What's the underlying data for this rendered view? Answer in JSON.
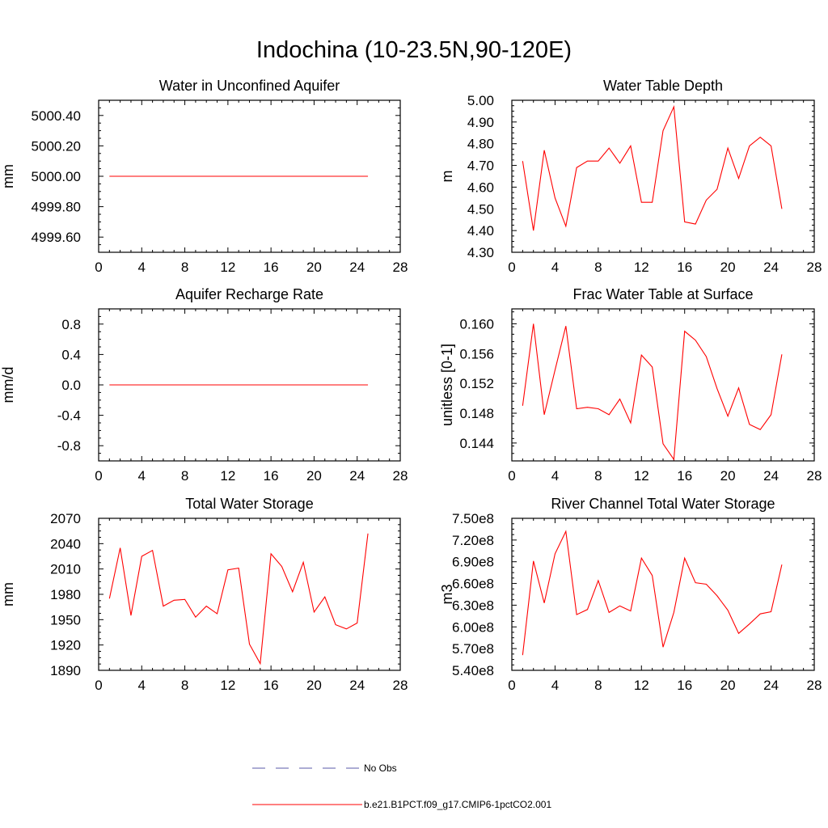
{
  "title": "Indochina (10-23.5N,90-120E)",
  "legend": [
    {
      "label": "No Obs",
      "color": "#5a5aa8",
      "style": "dashed"
    },
    {
      "label": "b.e21.B1PCT.f09_g17.CMIP6-1pctCO2.001",
      "color": "#ff0000",
      "style": "solid"
    }
  ],
  "chart_data": [
    {
      "type": "line",
      "title": "Water in Unconfined Aquifer",
      "ylabel": "mm",
      "xlim": [
        0,
        28
      ],
      "xticks": [
        0,
        4,
        8,
        12,
        16,
        20,
        24,
        28
      ],
      "ylim": [
        4999.5,
        5000.5
      ],
      "yticks": [
        4999.6,
        4999.8,
        5000.0,
        5000.2,
        5000.4
      ],
      "yticklabels": [
        "4999.60",
        "4999.80",
        "5000.00",
        "5000.20",
        "5000.40"
      ],
      "series": [
        {
          "color": "#ff0000",
          "x": [
            1,
            2,
            3,
            4,
            5,
            6,
            7,
            8,
            9,
            10,
            11,
            12,
            13,
            14,
            15,
            16,
            17,
            18,
            19,
            20,
            21,
            22,
            23,
            24,
            25
          ],
          "y": [
            5000,
            5000,
            5000,
            5000,
            5000,
            5000,
            5000,
            5000,
            5000,
            5000,
            5000,
            5000,
            5000,
            5000,
            5000,
            5000,
            5000,
            5000,
            5000,
            5000,
            5000,
            5000,
            5000,
            5000,
            5000
          ]
        }
      ]
    },
    {
      "type": "line",
      "title": "Water Table Depth",
      "ylabel": "m",
      "xlim": [
        0,
        28
      ],
      "xticks": [
        0,
        4,
        8,
        12,
        16,
        20,
        24,
        28
      ],
      "ylim": [
        4.3,
        5.0
      ],
      "yticks": [
        4.3,
        4.4,
        4.5,
        4.6,
        4.7,
        4.8,
        4.9,
        5.0
      ],
      "yticklabels": [
        "4.30",
        "4.40",
        "4.50",
        "4.60",
        "4.70",
        "4.80",
        "4.90",
        "5.00"
      ],
      "series": [
        {
          "color": "#ff0000",
          "x": [
            1,
            2,
            3,
            4,
            5,
            6,
            7,
            8,
            9,
            10,
            11,
            12,
            13,
            14,
            15,
            16,
            17,
            18,
            19,
            20,
            21,
            22,
            23,
            24,
            25
          ],
          "y": [
            4.72,
            4.4,
            4.77,
            4.55,
            4.42,
            4.69,
            4.72,
            4.72,
            4.78,
            4.71,
            4.79,
            4.53,
            4.53,
            4.86,
            4.97,
            4.44,
            4.43,
            4.54,
            4.59,
            4.78,
            4.64,
            4.79,
            4.83,
            4.79,
            4.5
          ]
        }
      ]
    },
    {
      "type": "line",
      "title": "Aquifer Recharge Rate",
      "ylabel": "mm/d",
      "xlim": [
        0,
        28
      ],
      "xticks": [
        0,
        4,
        8,
        12,
        16,
        20,
        24,
        28
      ],
      "ylim": [
        -1.0,
        1.0
      ],
      "yticks": [
        -0.8,
        -0.4,
        0.0,
        0.4,
        0.8
      ],
      "yticklabels": [
        "-0.8",
        "-0.4",
        "0.0",
        "0.4",
        "0.8"
      ],
      "series": [
        {
          "color": "#ff0000",
          "x": [
            1,
            2,
            3,
            4,
            5,
            6,
            7,
            8,
            9,
            10,
            11,
            12,
            13,
            14,
            15,
            16,
            17,
            18,
            19,
            20,
            21,
            22,
            23,
            24,
            25
          ],
          "y": [
            0,
            0,
            0,
            0,
            0,
            0,
            0,
            0,
            0,
            0,
            0,
            0,
            0,
            0,
            0,
            0,
            0,
            0,
            0,
            0,
            0,
            0,
            0,
            0,
            0
          ]
        }
      ]
    },
    {
      "type": "line",
      "title": "Frac Water Table at Surface",
      "ylabel": "unitless [0-1]",
      "xlim": [
        0,
        28
      ],
      "xticks": [
        0,
        4,
        8,
        12,
        16,
        20,
        24,
        28
      ],
      "ylim": [
        0.1416,
        0.162
      ],
      "yticks": [
        0.144,
        0.148,
        0.152,
        0.156,
        0.16
      ],
      "yticklabels": [
        "0.144",
        "0.148",
        "0.152",
        "0.156",
        "0.160"
      ],
      "series": [
        {
          "color": "#ff0000",
          "x": [
            1,
            2,
            3,
            4,
            5,
            6,
            7,
            8,
            9,
            10,
            11,
            12,
            13,
            14,
            15,
            16,
            17,
            18,
            19,
            20,
            21,
            22,
            23,
            24,
            25
          ],
          "y": [
            0.149,
            0.16,
            0.1478,
            0.1538,
            0.1597,
            0.1486,
            0.1488,
            0.1486,
            0.1478,
            0.1499,
            0.1467,
            0.1558,
            0.1542,
            0.1439,
            0.1418,
            0.159,
            0.1578,
            0.1556,
            0.1513,
            0.1476,
            0.1514,
            0.1465,
            0.1458,
            0.1478,
            0.1559
          ]
        }
      ]
    },
    {
      "type": "line",
      "title": "Total Water Storage",
      "ylabel": "mm",
      "xlim": [
        0,
        28
      ],
      "xticks": [
        0,
        4,
        8,
        12,
        16,
        20,
        24,
        28
      ],
      "ylim": [
        1890,
        2070
      ],
      "yticks": [
        1890,
        1920,
        1950,
        1980,
        2010,
        2040,
        2070
      ],
      "yticklabels": [
        "1890",
        "1920",
        "1950",
        "1980",
        "2010",
        "2040",
        "2070"
      ],
      "series": [
        {
          "color": "#ff0000",
          "x": [
            1,
            2,
            3,
            4,
            5,
            6,
            7,
            8,
            9,
            10,
            11,
            12,
            13,
            14,
            15,
            16,
            17,
            18,
            19,
            20,
            21,
            22,
            23,
            24,
            25
          ],
          "y": [
            1975,
            2035,
            1955,
            2025,
            2032,
            1966,
            1973,
            1974,
            1953,
            1966,
            1957,
            2009,
            2011,
            1921,
            1898,
            2028,
            2013,
            1983,
            2018,
            1959,
            1977,
            1944,
            1939,
            1946,
            2052
          ]
        }
      ]
    },
    {
      "type": "line",
      "title": "River Channel Total Water Storage",
      "ylabel": "m3",
      "xlim": [
        0,
        28
      ],
      "xticks": [
        0,
        4,
        8,
        12,
        16,
        20,
        24,
        28
      ],
      "ylim": [
        540000000,
        750000000
      ],
      "yticks": [
        540000000,
        570000000,
        600000000,
        630000000,
        660000000,
        690000000,
        720000000,
        750000000
      ],
      "yticklabels": [
        "5.40e8",
        "5.70e8",
        "6.00e8",
        "6.30e8",
        "6.60e8",
        "6.90e8",
        "7.20e8",
        "7.50e8"
      ],
      "series": [
        {
          "color": "#ff0000",
          "x": [
            1,
            2,
            3,
            4,
            5,
            6,
            7,
            8,
            9,
            10,
            11,
            12,
            13,
            14,
            15,
            16,
            17,
            18,
            19,
            20,
            21,
            22,
            23,
            24,
            25
          ],
          "y": [
            561000000,
            691000000,
            633000000,
            701000000,
            732000000,
            617000000,
            624000000,
            664000000,
            620000000,
            629000000,
            622000000,
            695000000,
            671000000,
            572000000,
            620000000,
            695000000,
            661000000,
            659000000,
            643000000,
            623000000,
            591000000,
            604000000,
            618000000,
            621000000,
            686000000
          ]
        }
      ]
    }
  ]
}
